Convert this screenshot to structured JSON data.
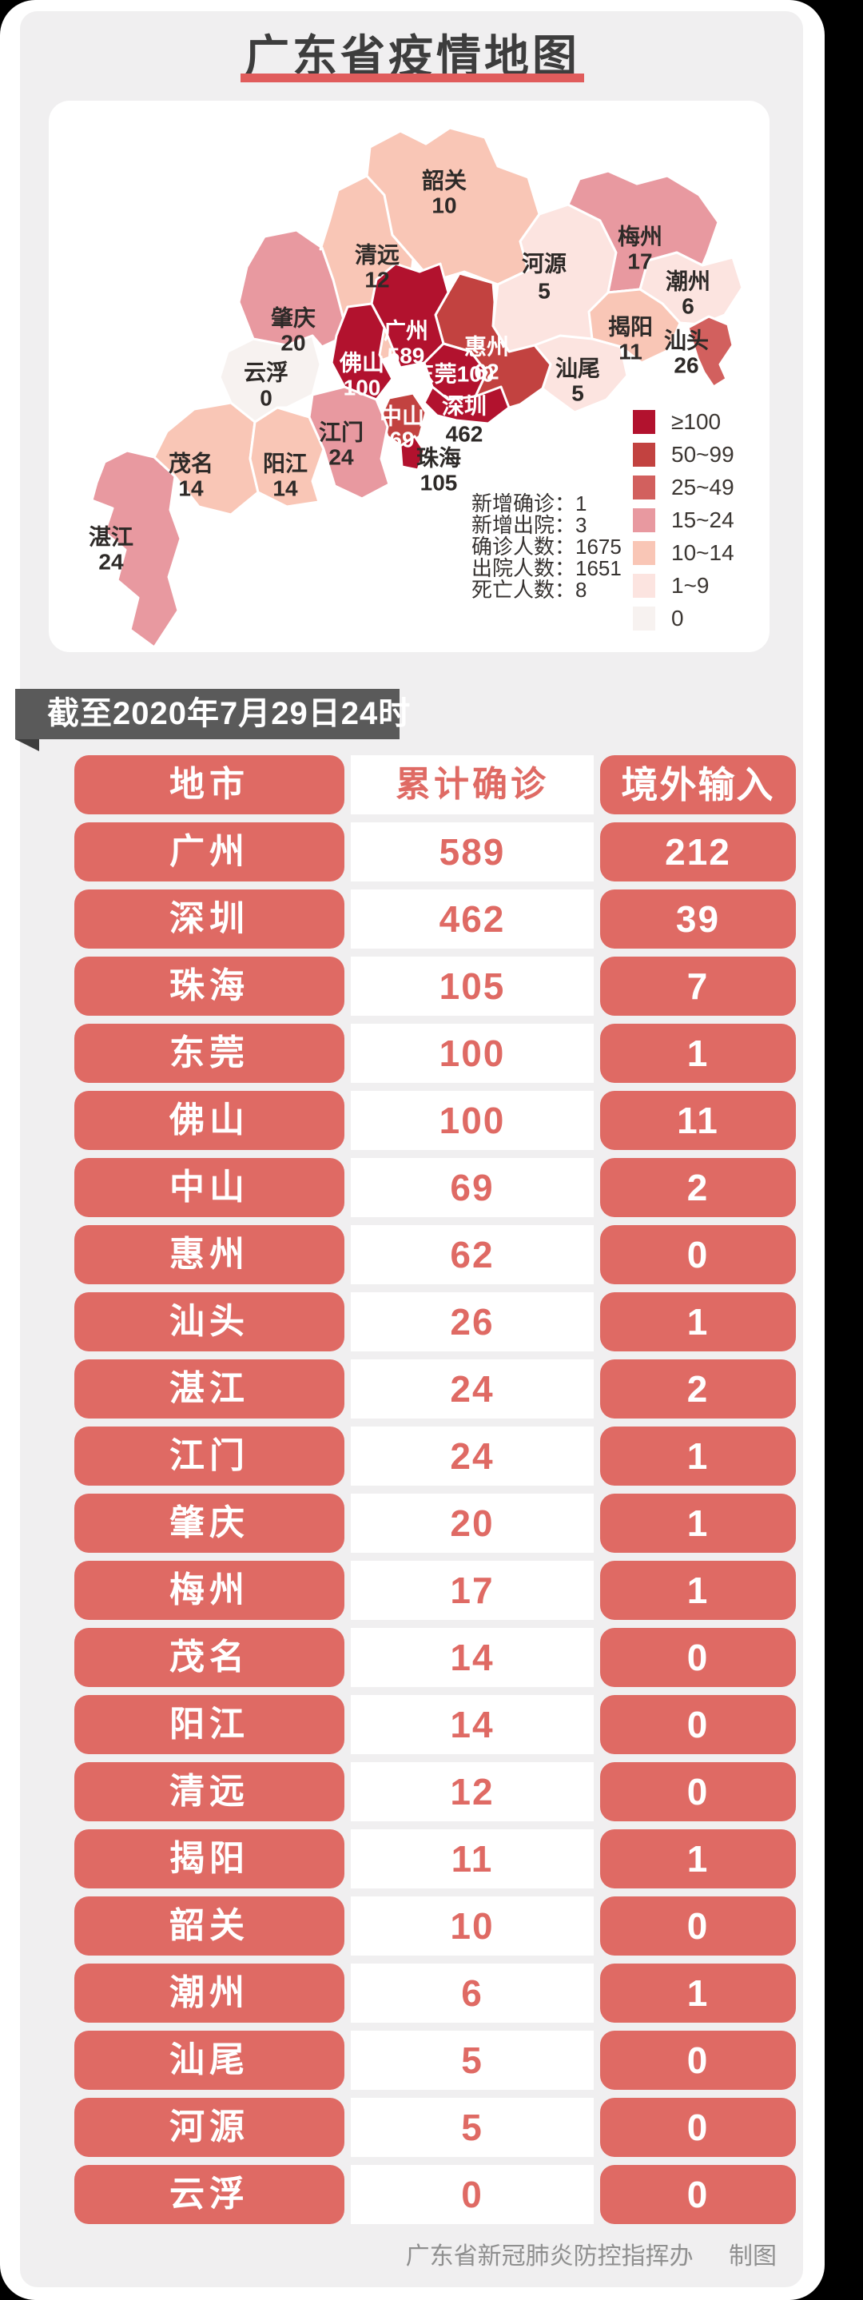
{
  "page": {
    "title": "广东省疫情地图",
    "banner": "截至2020年7月29日24时",
    "footer": {
      "org": "广东省新冠肺炎防控指挥办",
      "credit": "制图"
    },
    "accent_red": "#e05c5c",
    "pill_red": "#df6a64",
    "banner_gray": "#5a5a5a"
  },
  "map": {
    "legend": [
      {
        "label": "≥100",
        "color": "#b2122e"
      },
      {
        "label": "50~99",
        "color": "#c24240"
      },
      {
        "label": "25~49",
        "color": "#d2605e"
      },
      {
        "label": "15~24",
        "color": "#e899a0"
      },
      {
        "label": "10~14",
        "color": "#f9c6b6"
      },
      {
        "label": "1~9",
        "color": "#fce4e0"
      },
      {
        "label": "0",
        "color": "#f7f2f0"
      }
    ],
    "stats": [
      {
        "label": "新增确诊",
        "value": "1"
      },
      {
        "label": "新增出院",
        "value": "3"
      },
      {
        "label": "确诊人数",
        "value": "1675"
      },
      {
        "label": "出院人数",
        "value": "1651"
      },
      {
        "label": "死亡人数",
        "value": "8"
      }
    ],
    "cities": [
      {
        "id": "zhanjiang",
        "name": "湛江",
        "value": "24",
        "tier": "15~24",
        "name_style": "dark",
        "value_style": "dark"
      },
      {
        "id": "maoming",
        "name": "茂名",
        "value": "14",
        "tier": "10~14",
        "name_style": "dark",
        "value_style": "dark"
      },
      {
        "id": "yangjiang",
        "name": "阳江",
        "value": "14",
        "tier": "10~14",
        "name_style": "dark",
        "value_style": "dark"
      },
      {
        "id": "yunfu",
        "name": "云浮",
        "value": "0",
        "tier": "0",
        "name_style": "dark",
        "value_style": "dark"
      },
      {
        "id": "zhaoqing",
        "name": "肇庆",
        "value": "20",
        "tier": "15~24",
        "name_style": "dark",
        "value_style": "dark"
      },
      {
        "id": "qingyuan",
        "name": "清远",
        "value": "12",
        "tier": "10~14",
        "name_style": "dark",
        "value_style": "dark"
      },
      {
        "id": "shaoguan",
        "name": "韶关",
        "value": "10",
        "tier": "10~14",
        "name_style": "dark",
        "value_style": "dark"
      },
      {
        "id": "heyuan",
        "name": "河源",
        "value": "5",
        "tier": "1~9",
        "name_style": "dark",
        "value_style": "dark"
      },
      {
        "id": "meizhou",
        "name": "梅州",
        "value": "17",
        "tier": "15~24",
        "name_style": "dark",
        "value_style": "dark"
      },
      {
        "id": "chaozhou",
        "name": "潮州",
        "value": "6",
        "tier": "1~9",
        "name_style": "dark",
        "value_style": "dark"
      },
      {
        "id": "jieyang",
        "name": "揭阳",
        "value": "11",
        "tier": "10~14",
        "name_style": "dark",
        "value_style": "dark"
      },
      {
        "id": "shantou",
        "name": "汕头",
        "value": "26",
        "tier": "25~49",
        "name_style": "dark",
        "value_style": "dark"
      },
      {
        "id": "shanwei",
        "name": "汕尾",
        "value": "5",
        "tier": "1~9",
        "name_style": "dark",
        "value_style": "dark"
      },
      {
        "id": "huizhou",
        "name": "惠州",
        "value": "62",
        "tier": "50~99",
        "name_style": "light",
        "value_style": "light"
      },
      {
        "id": "guangzhou",
        "name": "广州",
        "value": "589",
        "tier": "≥100",
        "name_style": "light",
        "value_style": "light"
      },
      {
        "id": "dongguan",
        "name": "东莞",
        "value": "100",
        "tier": "≥100",
        "name_style": "light",
        "value_style": "light",
        "inline": true
      },
      {
        "id": "foshan",
        "name": "佛山",
        "value": "100",
        "tier": "≥100",
        "name_style": "light",
        "value_style": "light"
      },
      {
        "id": "zhongshan",
        "name": "中山",
        "value": "69",
        "tier": "50~99",
        "name_style": "light",
        "value_style": "light"
      },
      {
        "id": "shenzhen",
        "name": "深圳",
        "value": "462",
        "tier": "≥100",
        "name_style": "light",
        "value_style": "dark"
      },
      {
        "id": "zhuhai",
        "name": "珠海",
        "value": "105",
        "tier": "≥100",
        "name_style": "dark",
        "value_style": "dark"
      },
      {
        "id": "jiangmen",
        "name": "江门",
        "value": "24",
        "tier": "15~24",
        "name_style": "dark",
        "value_style": "dark"
      }
    ]
  },
  "table": {
    "headers": [
      "地市",
      "累计确诊",
      "境外输入"
    ],
    "rows": [
      [
        "广州",
        "589",
        "212"
      ],
      [
        "深圳",
        "462",
        "39"
      ],
      [
        "珠海",
        "105",
        "7"
      ],
      [
        "东莞",
        "100",
        "1"
      ],
      [
        "佛山",
        "100",
        "11"
      ],
      [
        "中山",
        "69",
        "2"
      ],
      [
        "惠州",
        "62",
        "0"
      ],
      [
        "汕头",
        "26",
        "1"
      ],
      [
        "湛江",
        "24",
        "2"
      ],
      [
        "江门",
        "24",
        "1"
      ],
      [
        "肇庆",
        "20",
        "1"
      ],
      [
        "梅州",
        "17",
        "1"
      ],
      [
        "茂名",
        "14",
        "0"
      ],
      [
        "阳江",
        "14",
        "0"
      ],
      [
        "清远",
        "12",
        "0"
      ],
      [
        "揭阳",
        "11",
        "1"
      ],
      [
        "韶关",
        "10",
        "0"
      ],
      [
        "潮州",
        "6",
        "1"
      ],
      [
        "汕尾",
        "5",
        "0"
      ],
      [
        "河源",
        "5",
        "0"
      ],
      [
        "云浮",
        "0",
        "0"
      ]
    ]
  }
}
